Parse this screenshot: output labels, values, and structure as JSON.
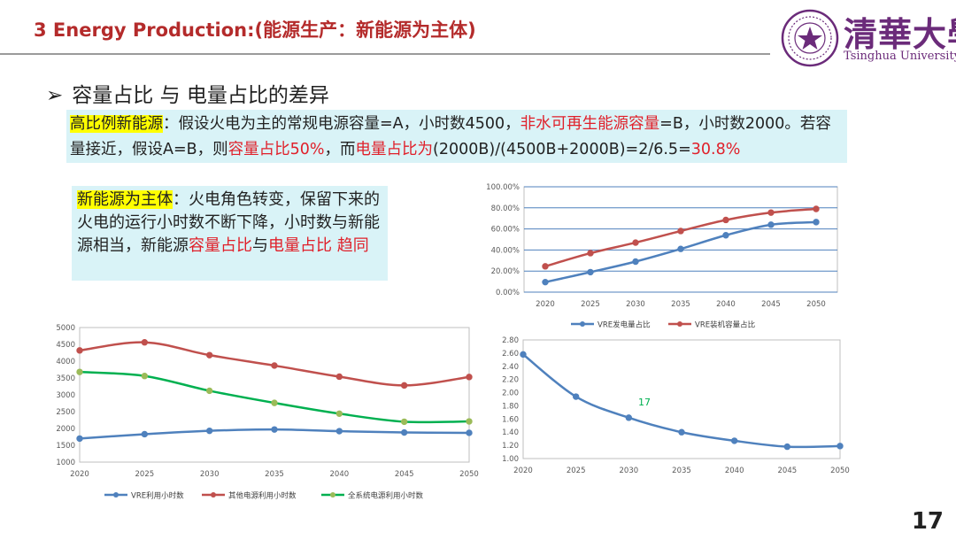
{
  "header": {
    "title": "3 Energy Production:(能源生产：新能源为主体)",
    "university_cn": "清華大學",
    "university_en": "Tsinghua University"
  },
  "bullet": {
    "arrow": "➢",
    "text": "容量占比  与  电量占比的差异"
  },
  "box1": {
    "segments": [
      {
        "text": "高比例新能源",
        "style": "hl"
      },
      {
        "text": "：假设火电为主的常规电源容量=A，小时数4500，",
        "style": ""
      },
      {
        "text": "非水可再生能源容量",
        "style": "red"
      },
      {
        "text": "=B，小时数2000。若容量接近，假设A=B，则",
        "style": ""
      },
      {
        "text": "容量占比50%",
        "style": "red"
      },
      {
        "text": "，而",
        "style": ""
      },
      {
        "text": "电量占比为",
        "style": "red"
      },
      {
        "text": "(2000B)/(4500B+2000B)=2/6.5=",
        "style": ""
      },
      {
        "text": "30.8%",
        "style": "red"
      }
    ]
  },
  "box2": {
    "segments": [
      {
        "text": "新能源为主体",
        "style": "hl"
      },
      {
        "text": "：火电角色转变，保留下来的火电的运行小时数不断下降，小时数与新能源相当，新能源",
        "style": ""
      },
      {
        "text": "容量占比",
        "style": "red"
      },
      {
        "text": "与",
        "style": ""
      },
      {
        "text": "电量占比 趋同",
        "style": "red"
      }
    ]
  },
  "page_number": "17",
  "chart_data": [
    {
      "id": "share",
      "type": "line",
      "x": [
        "2020",
        "2025",
        "2030",
        "2035",
        "2040",
        "2045",
        "2050"
      ],
      "ylim": [
        0,
        100
      ],
      "yticks": [
        "0.00%",
        "20.00%",
        "40.00%",
        "60.00%",
        "80.00%",
        "100.00%"
      ],
      "ytick_values": [
        0,
        20,
        40,
        60,
        80,
        100
      ],
      "grid": true,
      "legend_position": "bottom",
      "series": [
        {
          "name": "VRE发电量占比",
          "color": "#4f81bd",
          "values": [
            9.5,
            19,
            29,
            41,
            54,
            64,
            66.5
          ]
        },
        {
          "name": "VRE装机容量占比",
          "color": "#c0504d",
          "values": [
            24.5,
            37,
            47,
            58,
            68.5,
            75.5,
            79
          ]
        }
      ]
    },
    {
      "id": "hours",
      "type": "line",
      "x": [
        "2020",
        "2025",
        "2030",
        "2035",
        "2040",
        "2045",
        "2050"
      ],
      "ylim": [
        1000,
        5000
      ],
      "yticks": [
        "1000",
        "1500",
        "2000",
        "2500",
        "3000",
        "3500",
        "4000",
        "4500",
        "5000"
      ],
      "ytick_values": [
        1000,
        1500,
        2000,
        2500,
        3000,
        3500,
        4000,
        4500,
        5000
      ],
      "grid": false,
      "legend_position": "bottom",
      "series": [
        {
          "name": "VRE利用小时数",
          "color": "#4f81bd",
          "values": [
            1700,
            1830,
            1930,
            1970,
            1920,
            1880,
            1870
          ]
        },
        {
          "name": "其他电源利用小时数",
          "color": "#c0504d",
          "values": [
            4320,
            4560,
            4180,
            3870,
            3540,
            3280,
            3530
          ]
        },
        {
          "name": "全系统电源利用小时数",
          "color": "#00b050",
          "marker_color": "#9bbb59",
          "values": [
            3680,
            3560,
            3120,
            2760,
            2440,
            2200,
            2210
          ]
        }
      ]
    },
    {
      "id": "ratio",
      "type": "line",
      "x": [
        "2020",
        "2025",
        "2030",
        "2035",
        "2040",
        "2045",
        "2050"
      ],
      "ylim": [
        1.0,
        2.8
      ],
      "yticks": [
        "1.00",
        "1.20",
        "1.40",
        "1.60",
        "1.80",
        "2.00",
        "2.20",
        "2.40",
        "2.60",
        "2.80"
      ],
      "ytick_values": [
        1.0,
        1.2,
        1.4,
        1.6,
        1.8,
        2.0,
        2.2,
        2.4,
        2.6,
        2.8
      ],
      "grid": false,
      "annotation": "17",
      "series": [
        {
          "color": "#4f81bd",
          "values": [
            2.58,
            1.94,
            1.62,
            1.4,
            1.27,
            1.18,
            1.19
          ]
        }
      ]
    }
  ]
}
